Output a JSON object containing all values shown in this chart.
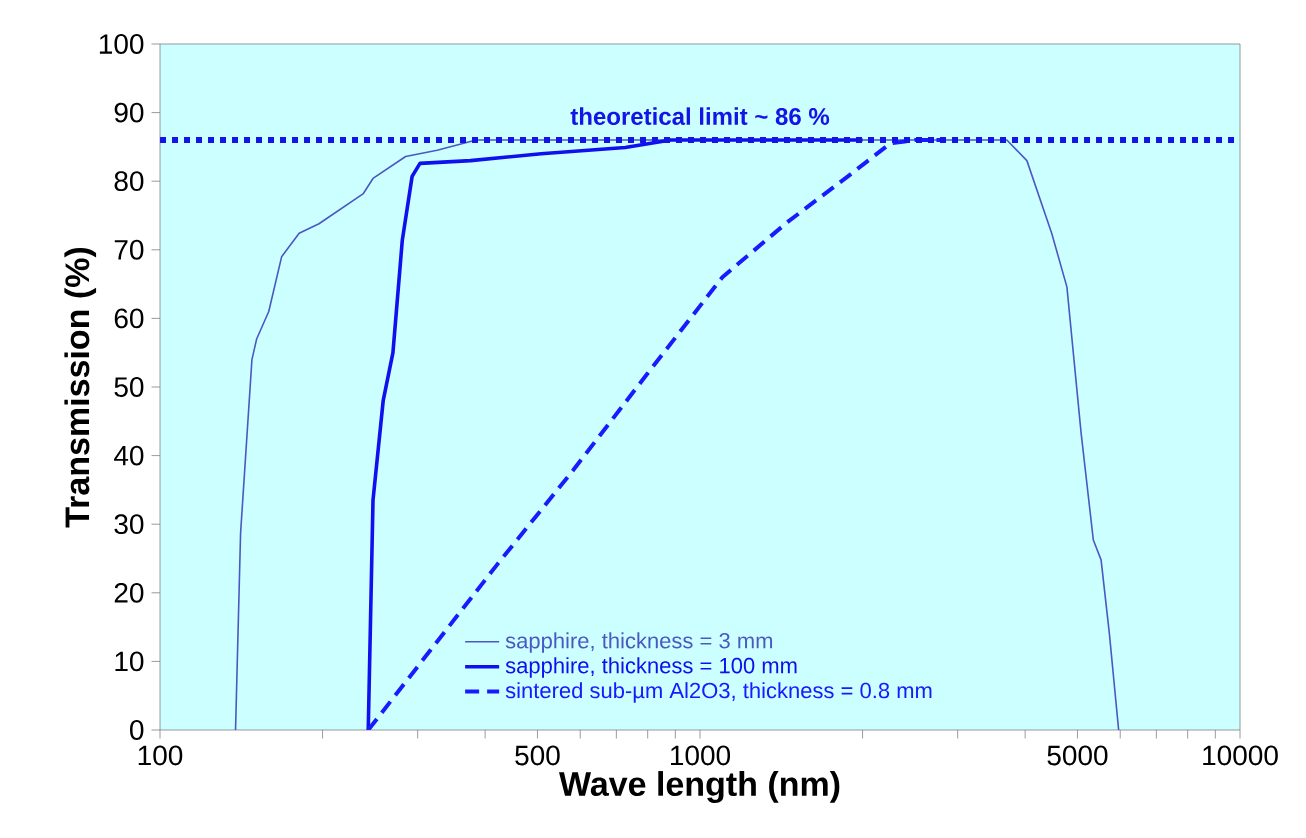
{
  "chart_data": {
    "type": "line",
    "xlabel": "Wave length (nm)",
    "ylabel": "Transmission (%)",
    "log": "x",
    "xlim": [
      100,
      10000
    ],
    "ylim": [
      0,
      100
    ],
    "xticks": [
      100,
      {
        "value": 200,
        "label": null
      },
      {
        "value": 300,
        "label": null
      },
      {
        "value": 400,
        "label": null
      },
      500,
      {
        "value": 600,
        "label": null
      },
      {
        "value": 700,
        "label": null
      },
      {
        "value": 800,
        "label": null
      },
      {
        "value": 900,
        "label": null
      },
      1000,
      {
        "value": 2000,
        "label": null
      },
      {
        "value": 3000,
        "label": null
      },
      {
        "value": 4000,
        "label": null
      },
      5000,
      {
        "value": 6000,
        "label": null
      },
      {
        "value": 7000,
        "label": null
      },
      {
        "value": 8000,
        "label": null
      },
      {
        "value": 9000,
        "label": null
      },
      10000
    ],
    "yticks": [
      0,
      10,
      20,
      30,
      40,
      50,
      60,
      70,
      80,
      90,
      100
    ],
    "grid": false,
    "legend": "bottom",
    "marker": "none",
    "series": [
      {
        "name": "sapphire, thickness = 3 mm",
        "color": "#4a58c4",
        "line_style": "solid",
        "x": [
          138,
          141,
          148,
          151,
          159,
          168,
          181,
          197,
          238,
          248,
          285,
          326,
          385,
          1000,
          3700,
          4030,
          4480,
          4780,
          5080,
          5350,
          5530,
          5730,
          5960
        ],
        "values": [
          0,
          28.7,
          54,
          57,
          61,
          69,
          72.4,
          73.8,
          78.2,
          80.4,
          83.6,
          84.5,
          86,
          86,
          86,
          83,
          72.4,
          64.6,
          43.2,
          27.7,
          24.8,
          14,
          0
        ]
      },
      {
        "name": "sapphire, thickness = 100 mm",
        "color": "#1010ee",
        "line_style": "solid",
        "x": [
          243,
          248,
          259,
          270,
          281,
          293,
          303,
          376,
          508,
          727,
          883,
          2000
        ],
        "values": [
          0,
          33.5,
          48,
          55,
          71.4,
          80.7,
          82.6,
          83,
          84,
          84.9,
          86,
          86
        ]
      },
      {
        "name": "sintered sub-µm Al2O3, thickness = 0.8 mm",
        "color": "#1a1aff",
        "line_style": "dashed",
        "x": [
          243,
          420,
          584,
          800,
          1100,
          1450,
          1900,
          2250,
          2500,
          2800
        ],
        "values": [
          0,
          24,
          38,
          52,
          66,
          74,
          81,
          85.5,
          86,
          86
        ]
      }
    ],
    "ref_lines": [
      {
        "axis": "y",
        "value": 86,
        "label": "theoretical limit  ~  86 %",
        "color": "#1414e6",
        "line_style": "dotted"
      }
    ]
  }
}
